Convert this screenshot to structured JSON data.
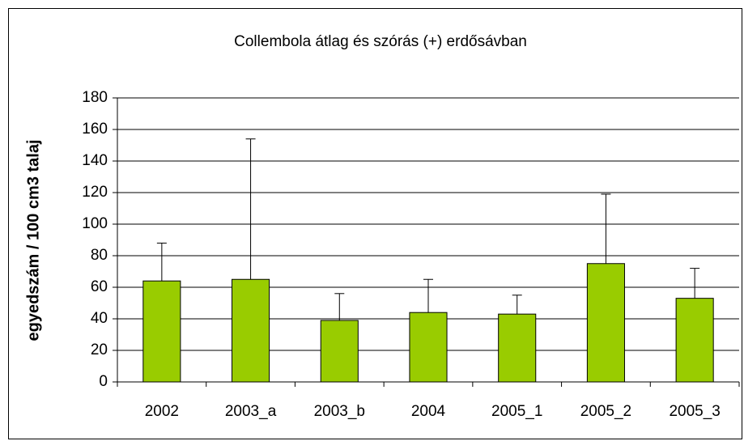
{
  "chart_data": {
    "type": "bar",
    "title": "Collembola átlag és szórás (+) erdősávban",
    "y_label": "egyedszám / 100 cm3 talaj",
    "categories": [
      "2002",
      "2003_a",
      "2003_b",
      "2004",
      "2005_1",
      "2005_2",
      "2005_3"
    ],
    "values": [
      64,
      65,
      39,
      44,
      43,
      75,
      53
    ],
    "errors": [
      24,
      89,
      17,
      21,
      12,
      44,
      19
    ],
    "color": "#99cc00",
    "ylim": [
      0,
      180
    ],
    "yticks": [
      0,
      20,
      40,
      60,
      80,
      100,
      120,
      140,
      160,
      180
    ],
    "grid": true
  }
}
